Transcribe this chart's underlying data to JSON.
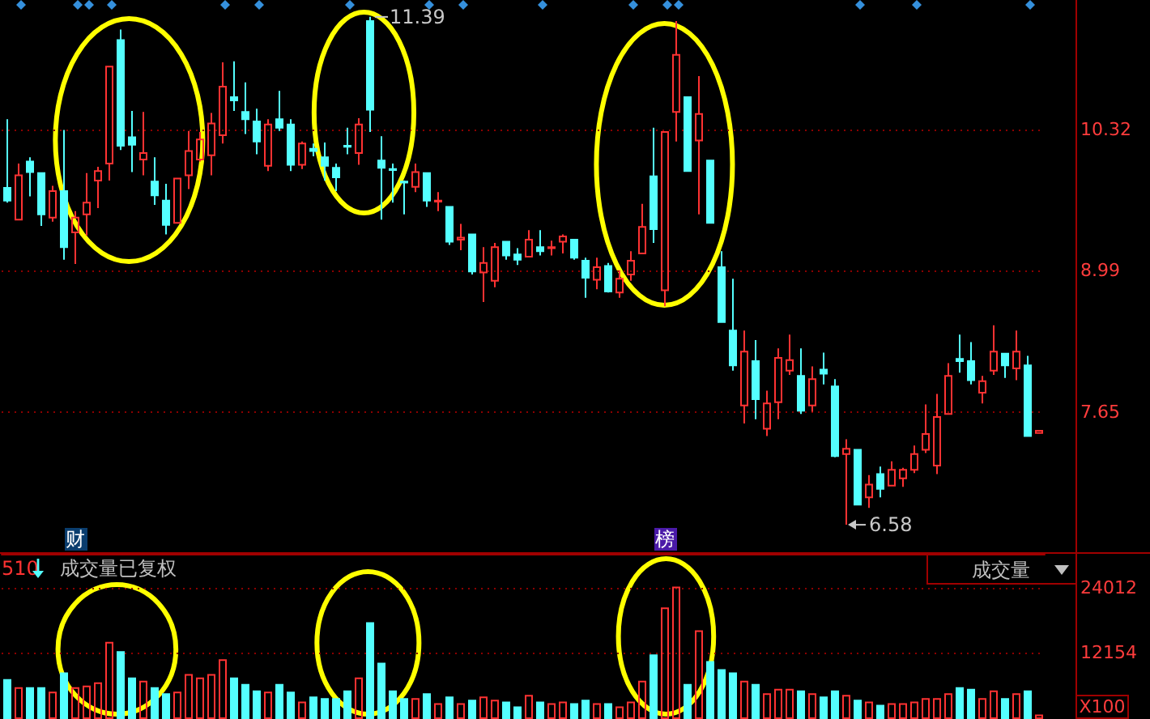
{
  "chart_data": [
    {
      "type": "candlestick",
      "categories": [
        null,
        null,
        null,
        null,
        null,
        null,
        null,
        null,
        null,
        null,
        null,
        null,
        null,
        null,
        null,
        null,
        null,
        null,
        null,
        null,
        null,
        null,
        null,
        null,
        null,
        null,
        null,
        null,
        null,
        null,
        null,
        null,
        null,
        null,
        null,
        null,
        null,
        null,
        null,
        null,
        null,
        null,
        null,
        null,
        null,
        null,
        null,
        null,
        null,
        null,
        null,
        null,
        null,
        null,
        null,
        null,
        null,
        null,
        null,
        null,
        null,
        null,
        null,
        null,
        null,
        null,
        null,
        null,
        null,
        null,
        null,
        null,
        null,
        null,
        null,
        null,
        null,
        null,
        null,
        null,
        null,
        null,
        null,
        null,
        null,
        null,
        null,
        null,
        null,
        null,
        null,
        null
      ],
      "ohlc": [
        [
          9.77,
          10.42,
          9.63,
          9.65
        ],
        [
          9.47,
          10.0,
          9.47,
          9.89
        ],
        [
          10.02,
          10.06,
          9.69,
          9.92
        ],
        [
          9.91,
          9.91,
          9.41,
          9.52
        ],
        [
          9.49,
          9.79,
          9.45,
          9.74
        ],
        [
          9.74,
          10.32,
          9.09,
          9.21
        ],
        [
          9.35,
          9.55,
          9.05,
          9.49
        ],
        [
          9.52,
          9.91,
          9.32,
          9.63
        ],
        [
          9.84,
          9.97,
          9.58,
          9.93
        ],
        [
          10.0,
          10.92,
          9.84,
          10.92
        ],
        [
          11.17,
          11.27,
          10.13,
          10.17
        ],
        [
          10.25,
          10.5,
          9.92,
          10.18
        ],
        [
          10.04,
          10.49,
          9.89,
          10.1
        ],
        [
          9.83,
          10.06,
          9.61,
          9.7
        ],
        [
          9.65,
          9.81,
          9.33,
          9.42
        ],
        [
          9.44,
          9.86,
          9.44,
          9.86
        ],
        [
          9.89,
          10.31,
          9.76,
          10.12
        ],
        [
          10.04,
          10.3,
          10.02,
          10.23
        ],
        [
          10.08,
          10.48,
          9.89,
          10.38
        ],
        [
          10.27,
          10.96,
          10.19,
          10.73
        ],
        [
          10.63,
          10.97,
          10.5,
          10.6
        ],
        [
          10.49,
          10.77,
          10.28,
          10.42
        ],
        [
          10.4,
          10.52,
          10.09,
          10.21
        ],
        [
          9.98,
          10.42,
          9.93,
          10.37
        ],
        [
          10.42,
          10.69,
          10.31,
          10.34
        ],
        [
          10.37,
          10.42,
          9.93,
          9.99
        ],
        [
          9.99,
          10.21,
          9.95,
          10.19
        ],
        [
          10.14,
          10.19,
          10.07,
          10.12
        ],
        [
          10.06,
          10.2,
          9.84,
          9.98
        ],
        [
          9.96,
          10.0,
          9.74,
          9.87
        ],
        [
          10.17,
          10.34,
          10.09,
          10.16
        ],
        [
          10.1,
          10.43,
          9.99,
          10.37
        ],
        [
          11.35,
          11.39,
          10.3,
          10.51
        ],
        [
          10.03,
          10.26,
          9.47,
          9.96
        ],
        [
          9.95,
          10.0,
          9.63,
          9.94
        ],
        [
          9.83,
          9.84,
          9.52,
          9.82
        ],
        [
          9.78,
          10.0,
          9.73,
          9.92
        ],
        [
          9.91,
          9.91,
          9.59,
          9.65
        ],
        [
          9.64,
          9.73,
          9.55,
          9.65
        ],
        [
          9.59,
          9.59,
          9.23,
          9.26
        ],
        [
          9.28,
          9.43,
          9.18,
          9.3
        ],
        [
          9.33,
          9.33,
          8.95,
          8.98
        ],
        [
          8.97,
          9.21,
          8.69,
          9.06
        ],
        [
          8.89,
          9.25,
          8.83,
          9.21
        ],
        [
          9.26,
          9.26,
          9.09,
          9.13
        ],
        [
          9.14,
          9.2,
          9.04,
          9.09
        ],
        [
          9.12,
          9.37,
          9.12,
          9.28
        ],
        [
          9.21,
          9.37,
          9.13,
          9.17
        ],
        [
          9.2,
          9.27,
          9.13,
          9.21
        ],
        [
          9.26,
          9.33,
          9.15,
          9.31
        ],
        [
          9.28,
          9.28,
          9.09,
          9.11
        ],
        [
          9.08,
          9.11,
          8.73,
          8.92
        ],
        [
          8.9,
          9.11,
          8.81,
          9.02
        ],
        [
          9.03,
          9.06,
          8.78,
          8.79
        ],
        [
          8.78,
          8.99,
          8.73,
          8.91
        ],
        [
          8.95,
          9.17,
          8.89,
          9.08
        ],
        [
          9.15,
          9.62,
          9.15,
          9.4
        ],
        [
          9.88,
          10.34,
          9.25,
          9.38
        ],
        [
          8.8,
          10.3,
          8.65,
          10.3
        ],
        [
          10.49,
          11.35,
          10.21,
          11.03
        ],
        [
          10.63,
          10.63,
          9.93,
          9.93
        ],
        [
          10.22,
          10.83,
          9.52,
          10.47
        ],
        [
          10.03,
          10.03,
          9.44,
          9.44
        ],
        [
          9.02,
          9.17,
          8.5,
          8.5
        ],
        [
          8.42,
          8.91,
          8.04,
          8.09
        ],
        [
          7.71,
          8.42,
          7.54,
          8.22
        ],
        [
          8.13,
          8.33,
          7.58,
          7.77
        ],
        [
          7.49,
          7.85,
          7.42,
          7.73
        ],
        [
          7.74,
          8.25,
          7.58,
          8.16
        ],
        [
          8.04,
          8.38,
          8.0,
          8.14
        ],
        [
          7.99,
          8.25,
          7.63,
          7.66
        ],
        [
          7.71,
          8.08,
          7.65,
          7.96
        ],
        [
          8.05,
          8.21,
          7.91,
          8.01
        ],
        [
          7.89,
          7.96,
          7.22,
          7.23
        ],
        [
          7.25,
          7.39,
          6.58,
          7.3
        ],
        [
          7.29,
          7.29,
          6.77,
          6.77
        ],
        [
          6.84,
          7.05,
          6.74,
          6.96
        ],
        [
          7.06,
          7.13,
          6.84,
          6.92
        ],
        [
          6.95,
          7.18,
          6.95,
          7.1
        ],
        [
          7.02,
          7.12,
          6.94,
          7.1
        ],
        [
          7.1,
          7.33,
          7.07,
          7.25
        ],
        [
          7.29,
          7.72,
          7.26,
          7.44
        ],
        [
          7.14,
          7.82,
          7.06,
          7.6
        ],
        [
          7.63,
          8.11,
          7.63,
          7.99
        ],
        [
          8.15,
          8.38,
          8.02,
          8.13
        ],
        [
          8.13,
          8.31,
          7.91,
          7.95
        ],
        [
          7.83,
          7.99,
          7.73,
          7.94
        ],
        [
          8.04,
          8.47,
          8.0,
          8.22
        ],
        [
          8.2,
          8.2,
          7.97,
          8.09
        ],
        [
          8.06,
          8.42,
          7.95,
          8.22
        ],
        [
          8.09,
          8.18,
          7.42,
          7.42
        ],
        [
          7.45,
          7.47,
          7.45,
          7.47
        ]
      ],
      "colors": [
        "#54ffff",
        "#ff3232",
        "#54ffff",
        "#54ffff",
        "#ff3232",
        "#54ffff",
        "#ff3232",
        "#ff3232",
        "#ff3232",
        "#ff3232",
        "#54ffff",
        "#54ffff",
        "#ff3232",
        "#54ffff",
        "#54ffff",
        "#ff3232",
        "#ff3232",
        "#ff3232",
        "#ff3232",
        "#ff3232",
        "#54ffff",
        "#54ffff",
        "#54ffff",
        "#ff3232",
        "#54ffff",
        "#54ffff",
        "#ff3232",
        "#54ffff",
        "#54ffff",
        "#54ffff",
        "#54ffff",
        "#ff3232",
        "#54ffff",
        "#54ffff",
        "#54ffff",
        "#54ffff",
        "#ff3232",
        "#54ffff",
        "#ff3232",
        "#54ffff",
        "#ff3232",
        "#54ffff",
        "#ff3232",
        "#ff3232",
        "#54ffff",
        "#54ffff",
        "#ff3232",
        "#54ffff",
        "#ff3232",
        "#ff3232",
        "#54ffff",
        "#54ffff",
        "#ff3232",
        "#54ffff",
        "#ff3232",
        "#ff3232",
        "#ff3232",
        "#54ffff",
        "#ff3232",
        "#ff3232",
        "#54ffff",
        "#ff3232",
        "#54ffff",
        "#54ffff",
        "#54ffff",
        "#ff3232",
        "#54ffff",
        "#ff3232",
        "#ff3232",
        "#ff3232",
        "#54ffff",
        "#ff3232",
        "#54ffff",
        "#54ffff",
        "#ff3232",
        "#54ffff",
        "#ff3232",
        "#54ffff",
        "#ff3232",
        "#ff3232",
        "#ff3232",
        "#ff3232",
        "#ff3232",
        "#ff3232",
        "#54ffff",
        "#54ffff",
        "#ff3232",
        "#ff3232",
        "#54ffff",
        "#ff3232",
        "#54ffff",
        "#ff3232"
      ],
      "ylim": [
        6.32,
        11.55
      ],
      "yticks": [
        7.65,
        8.99,
        10.32
      ],
      "grid": "y",
      "tick_labels": "y",
      "annotations": [
        "11.39",
        "6.58",
        "财",
        "榜"
      ]
    },
    {
      "type": "bar",
      "categories": [
        null,
        null,
        null,
        null,
        null,
        null,
        null,
        null,
        null,
        null,
        null,
        null,
        null,
        null,
        null,
        null,
        null,
        null,
        null,
        null,
        null,
        null,
        null,
        null,
        null,
        null,
        null,
        null,
        null,
        null,
        null,
        null,
        null,
        null,
        null,
        null,
        null,
        null,
        null,
        null,
        null,
        null,
        null,
        null,
        null,
        null,
        null,
        null,
        null,
        null,
        null,
        null,
        null,
        null,
        null,
        null,
        null,
        null,
        null,
        null,
        null,
        null,
        null,
        null,
        null,
        null,
        null,
        null,
        null,
        null,
        null,
        null,
        null,
        null,
        null,
        null,
        null,
        null,
        null,
        null,
        null,
        null,
        null,
        null,
        null,
        null,
        null,
        null,
        null,
        null,
        null,
        null
      ],
      "values": [
        7300,
        5800,
        5800,
        5800,
        5000,
        8500,
        5800,
        6100,
        6700,
        14100,
        12400,
        7600,
        7000,
        5800,
        4700,
        5000,
        8200,
        7600,
        8200,
        10900,
        7600,
        6400,
        5200,
        5000,
        6400,
        5000,
        3200,
        4100,
        3800,
        3800,
        5200,
        7600,
        17700,
        10300,
        5200,
        3800,
        3800,
        4700,
        2900,
        4100,
        2900,
        3500,
        4100,
        3500,
        3200,
        2300,
        4400,
        3200,
        2900,
        3200,
        2900,
        3500,
        2900,
        2900,
        2300,
        3200,
        7000,
        11800,
        20400,
        24200,
        6400,
        16200,
        10600,
        9100,
        8500,
        7000,
        6400,
        4700,
        5500,
        5500,
        5200,
        4700,
        4100,
        5200,
        4400,
        3500,
        3200,
        2600,
        2900,
        2900,
        3200,
        3800,
        3800,
        4700,
        5800,
        5500,
        3800,
        5200,
        3800,
        4700,
        5200,
        800
      ],
      "colors": [
        "#54ffff",
        "#ff3232",
        "#54ffff",
        "#54ffff",
        "#ff3232",
        "#54ffff",
        "#ff3232",
        "#ff3232",
        "#ff3232",
        "#ff3232",
        "#54ffff",
        "#54ffff",
        "#ff3232",
        "#54ffff",
        "#54ffff",
        "#ff3232",
        "#ff3232",
        "#ff3232",
        "#ff3232",
        "#ff3232",
        "#54ffff",
        "#54ffff",
        "#54ffff",
        "#ff3232",
        "#54ffff",
        "#54ffff",
        "#ff3232",
        "#54ffff",
        "#54ffff",
        "#54ffff",
        "#54ffff",
        "#ff3232",
        "#54ffff",
        "#54ffff",
        "#54ffff",
        "#54ffff",
        "#ff3232",
        "#54ffff",
        "#ff3232",
        "#54ffff",
        "#ff3232",
        "#54ffff",
        "#ff3232",
        "#ff3232",
        "#54ffff",
        "#54ffff",
        "#ff3232",
        "#54ffff",
        "#ff3232",
        "#ff3232",
        "#54ffff",
        "#54ffff",
        "#ff3232",
        "#54ffff",
        "#ff3232",
        "#ff3232",
        "#ff3232",
        "#54ffff",
        "#ff3232",
        "#ff3232",
        "#54ffff",
        "#ff3232",
        "#54ffff",
        "#54ffff",
        "#54ffff",
        "#ff3232",
        "#54ffff",
        "#ff3232",
        "#ff3232",
        "#ff3232",
        "#54ffff",
        "#ff3232",
        "#54ffff",
        "#54ffff",
        "#ff3232",
        "#54ffff",
        "#ff3232",
        "#54ffff",
        "#ff3232",
        "#ff3232",
        "#ff3232",
        "#ff3232",
        "#ff3232",
        "#ff3232",
        "#54ffff",
        "#54ffff",
        "#ff3232",
        "#ff3232",
        "#54ffff",
        "#ff3232",
        "#54ffff",
        "#ff3232"
      ],
      "ylim": [
        0,
        30200
      ],
      "yticks": [
        12154,
        24012
      ],
      "grid": "y",
      "tick_labels": "y",
      "annotations": [
        "510",
        "成交量已复权",
        "成交量",
        "X100"
      ]
    }
  ]
}
